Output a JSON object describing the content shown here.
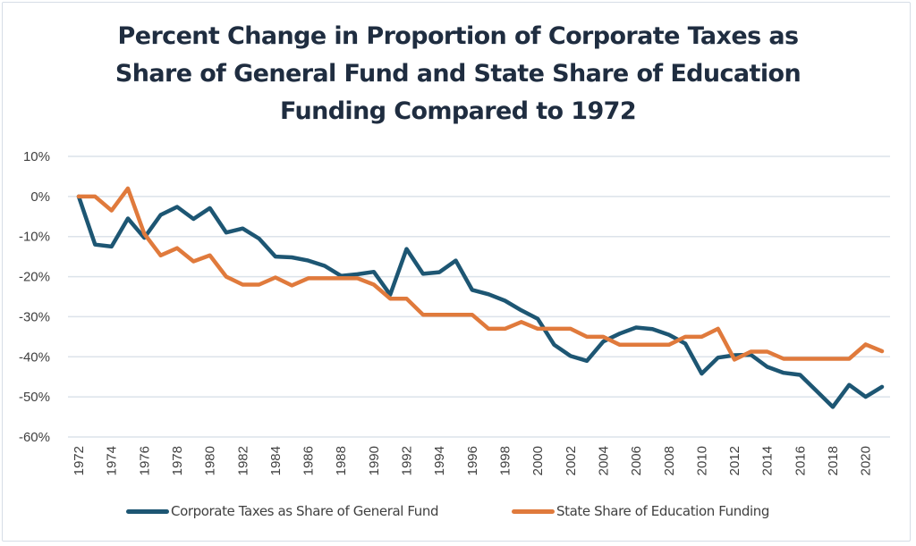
{
  "chart_data": {
    "type": "line",
    "title_lines": [
      "Percent Change in Proportion of Corporate Taxes as",
      "Share of General Fund and State Share of Education",
      "Funding Compared to 1972"
    ],
    "xlabel": "",
    "ylabel": "",
    "ylim": [
      -60,
      10
    ],
    "yticks": [
      10,
      0,
      -10,
      -20,
      -30,
      -40,
      -50,
      -60
    ],
    "ytick_labels": [
      "10%",
      "0%",
      "-10%",
      "-20%",
      "-30%",
      "-40%",
      "-50%",
      "-60%"
    ],
    "x": [
      1972,
      1973,
      1974,
      1975,
      1976,
      1977,
      1978,
      1979,
      1980,
      1981,
      1982,
      1983,
      1984,
      1985,
      1986,
      1987,
      1988,
      1989,
      1990,
      1991,
      1992,
      1993,
      1994,
      1995,
      1996,
      1997,
      1998,
      1999,
      2000,
      2001,
      2002,
      2003,
      2004,
      2005,
      2006,
      2007,
      2008,
      2009,
      2010,
      2011,
      2012,
      2013,
      2014,
      2015,
      2016,
      2017,
      2018,
      2019,
      2020,
      2021
    ],
    "xtick_labels": [
      "1972",
      "1974",
      "1976",
      "1978",
      "1980",
      "1982",
      "1984",
      "1986",
      "1988",
      "1990",
      "1992",
      "1994",
      "1996",
      "1998",
      "2000",
      "2002",
      "2004",
      "2006",
      "2008",
      "2010",
      "2012",
      "2014",
      "2016",
      "2018",
      "2020"
    ],
    "grid": true,
    "legend_position": "bottom",
    "series": [
      {
        "name": "Corporate Taxes as Share of General Fund",
        "color": "#1d5673",
        "values": [
          0,
          -12,
          -12.5,
          -5.5,
          -10.3,
          -4.6,
          -2.6,
          -5.6,
          -2.9,
          -9,
          -8,
          -10.5,
          -15,
          -15.2,
          -16,
          -17.3,
          -19.8,
          -19.4,
          -18.8,
          -24.5,
          -13.1,
          -19.3,
          -18.9,
          -16,
          -23.3,
          -24.4,
          -26,
          -28.4,
          -30.5,
          -37,
          -39.8,
          -41,
          -36.2,
          -34.2,
          -32.7,
          -33.1,
          -34.5,
          -36.7,
          -44.2,
          -40.2,
          -39.6,
          -39.5,
          -42.5,
          -44,
          -44.5,
          -48.5,
          -52.5,
          -47,
          -50,
          -47.5
        ]
      },
      {
        "name": "State Share of Education Funding",
        "color": "#e07a3c",
        "values": [
          0,
          0,
          -3.5,
          2,
          -9.3,
          -14.7,
          -12.9,
          -16.2,
          -14.7,
          -20,
          -22,
          -22,
          -20.2,
          -22.2,
          -20.4,
          -20.4,
          -20.4,
          -20.4,
          -22,
          -25.5,
          -25.5,
          -29.5,
          -29.5,
          -29.5,
          -29.5,
          -33,
          -33,
          -31.3,
          -33,
          -33,
          -33,
          -35,
          -35,
          -37,
          -37,
          -37,
          -37,
          -35,
          -35,
          -33,
          -40.7,
          -38.7,
          -38.7,
          -40.5,
          -40.5,
          -40.5,
          -40.5,
          -40.5,
          -36.9,
          -38.6
        ]
      }
    ]
  }
}
